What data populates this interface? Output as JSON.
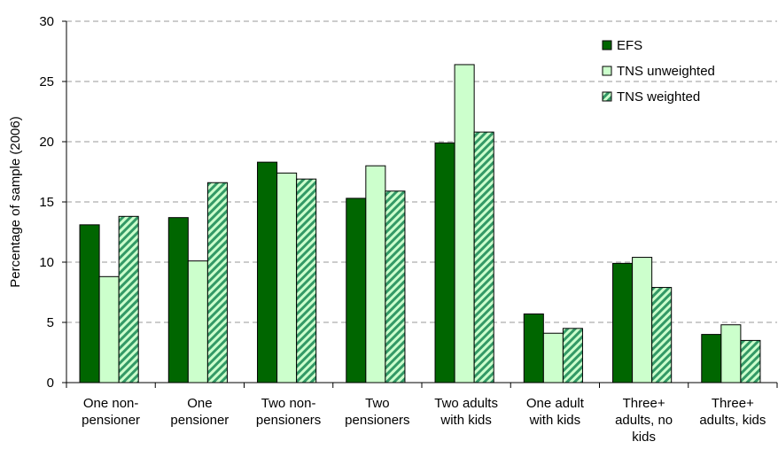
{
  "chart_data": {
    "type": "bar",
    "y_label": "Percentage of sample (2006)",
    "categories": [
      "One non-\npensioner",
      "One\npensioner",
      "Two non-\npensioners",
      "Two\npensioners",
      "Two adults\nwith kids",
      "One adult\nwith kids",
      "Three+\nadults, no\nkids",
      "Three+\nadults, kids"
    ],
    "series": [
      {
        "name": "EFS",
        "color": "#006600",
        "values": [
          13.1,
          13.7,
          18.3,
          15.3,
          19.9,
          5.7,
          9.9,
          4.0
        ]
      },
      {
        "name": "TNS unweighted",
        "color": "#ccffcc",
        "values": [
          8.8,
          10.1,
          17.4,
          18.0,
          26.4,
          4.1,
          10.4,
          4.8
        ]
      },
      {
        "name": "TNS weighted",
        "color": "#339966",
        "pattern": "hatch",
        "values": [
          13.8,
          16.6,
          16.9,
          15.9,
          20.8,
          4.5,
          7.9,
          3.5
        ]
      }
    ],
    "ylim": [
      0,
      30
    ],
    "yticks": [
      0,
      5,
      10,
      15,
      20,
      25,
      30
    ],
    "grid": true,
    "legend": "top-right"
  }
}
